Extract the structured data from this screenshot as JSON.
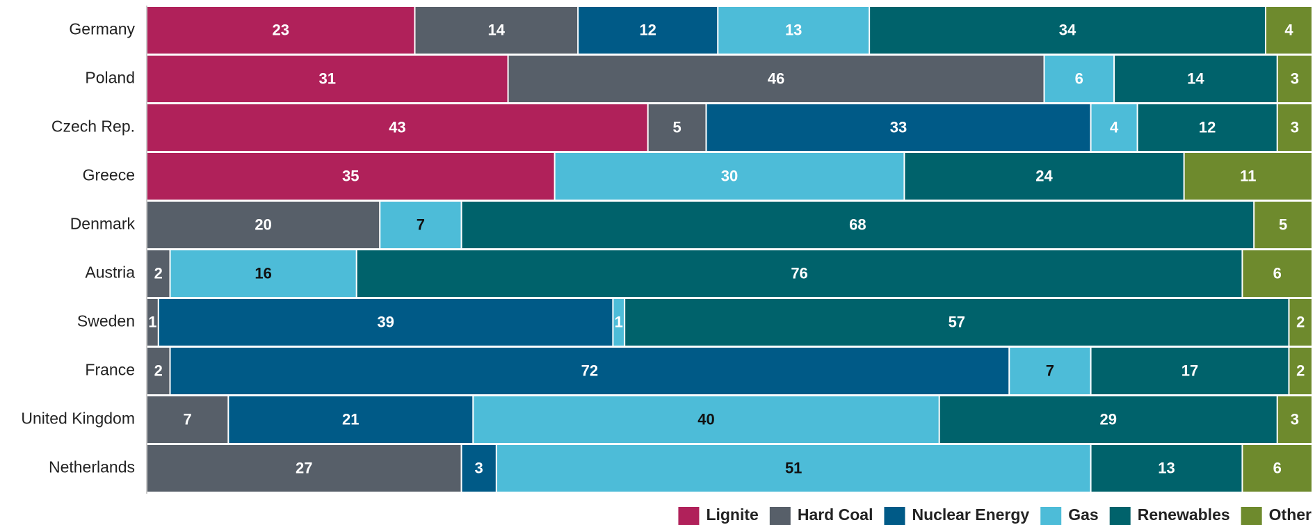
{
  "chart_data": {
    "type": "stacked_bar_horizontal",
    "categories": [
      "Germany",
      "Poland",
      "Czech Rep.",
      "Greece",
      "Denmark",
      "Austria",
      "Sweden",
      "France",
      "United Kingdom",
      "Netherlands"
    ],
    "series": [
      {
        "name": "Lignite",
        "color": "#b0215a",
        "values": [
          23,
          31,
          43,
          35,
          null,
          null,
          null,
          null,
          null,
          null
        ]
      },
      {
        "name": "Hard Coal",
        "color": "#575f69",
        "values": [
          14,
          46,
          5,
          null,
          20,
          2,
          1,
          2,
          7,
          27
        ]
      },
      {
        "name": "Nuclear Energy",
        "color": "#005a87",
        "values": [
          12,
          null,
          33,
          null,
          null,
          null,
          39,
          72,
          21,
          3
        ]
      },
      {
        "name": "Gas",
        "color": "#4dbcd8",
        "values": [
          13,
          6,
          4,
          30,
          7,
          16,
          1,
          7,
          40,
          51
        ]
      },
      {
        "name": "Renewables",
        "color": "#00626b",
        "values": [
          34,
          14,
          12,
          24,
          68,
          76,
          57,
          17,
          29,
          13
        ]
      },
      {
        "name": "Other",
        "color": "#6e8a2d",
        "values": [
          4,
          3,
          3,
          11,
          5,
          6,
          2,
          2,
          3,
          6
        ]
      }
    ],
    "xlim": [
      0,
      100
    ],
    "legend": "bottom-right"
  }
}
